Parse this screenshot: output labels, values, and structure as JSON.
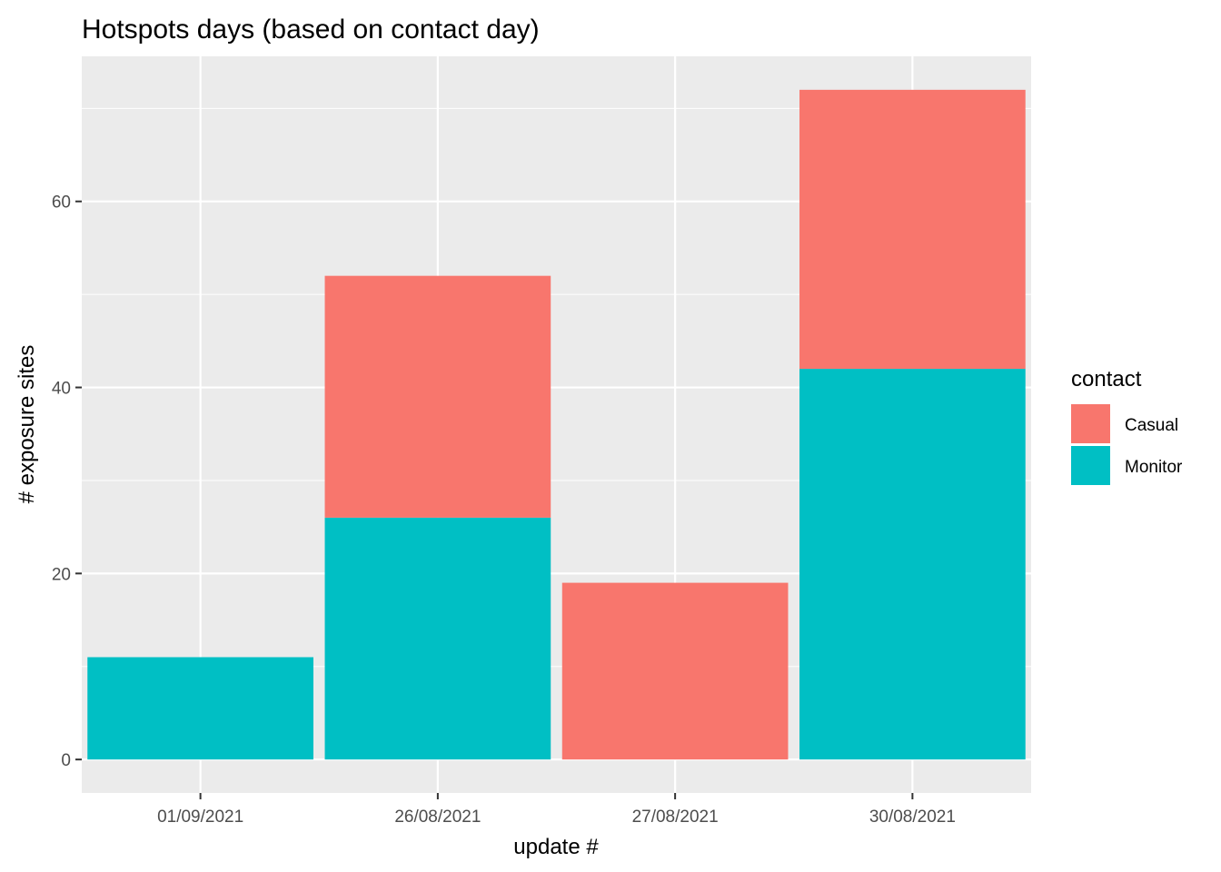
{
  "chart_data": {
    "type": "bar",
    "stacked": true,
    "title": "Hotspots days (based on contact day)",
    "xlabel": "update #",
    "ylabel": "# exposure sites",
    "categories": [
      "01/09/2021",
      "26/08/2021",
      "27/08/2021",
      "30/08/2021"
    ],
    "series": [
      {
        "name": "Casual",
        "color": "#F8766D",
        "values": [
          0,
          26,
          19,
          30
        ]
      },
      {
        "name": "Monitor",
        "color": "#00BFC4",
        "values": [
          11,
          26,
          0,
          42
        ]
      }
    ],
    "stack_order": [
      "Monitor",
      "Casual"
    ],
    "ylim": [
      -3.6,
      75.6
    ],
    "yticks": [
      0,
      20,
      40,
      60
    ],
    "grid": true,
    "legend": {
      "title": "contact",
      "position": "right"
    },
    "panel_background": "#EBEBEB",
    "grid_color": "#FFFFFF"
  }
}
